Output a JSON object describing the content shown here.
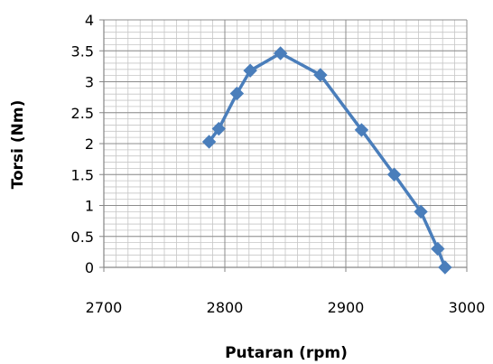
{
  "chart_data": {
    "type": "line",
    "title": "",
    "xlabel": "Putaran (rpm)",
    "ylabel": "Torsi (Nm)",
    "xlim": [
      2700,
      3000
    ],
    "ylim": [
      0,
      4
    ],
    "x_ticks": [
      "2700",
      "2800",
      "2900",
      "3000"
    ],
    "y_ticks": [
      "0",
      "0.5",
      "1",
      "1.5",
      "2",
      "2.5",
      "3",
      "3.5",
      "4"
    ],
    "grid": true,
    "legend": "none",
    "series": [
      {
        "color": "#4a7ebb",
        "marker": "diamond",
        "points": [
          {
            "x": 2787,
            "y": 2.03
          },
          {
            "x": 2795,
            "y": 2.24
          },
          {
            "x": 2810,
            "y": 2.81
          },
          {
            "x": 2821,
            "y": 3.18
          },
          {
            "x": 2846,
            "y": 3.46
          },
          {
            "x": 2879,
            "y": 3.11
          },
          {
            "x": 2913,
            "y": 2.22
          },
          {
            "x": 2940,
            "y": 1.5
          },
          {
            "x": 2962,
            "y": 0.9
          },
          {
            "x": 2976,
            "y": 0.3
          },
          {
            "x": 2982,
            "y": 0.0
          }
        ]
      }
    ]
  }
}
